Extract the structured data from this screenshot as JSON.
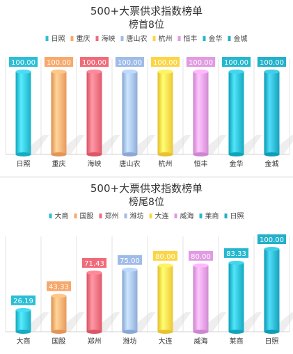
{
  "chart_data": [
    {
      "type": "bar",
      "title": "500+大票供求指数榜单",
      "subtitle": "榜首8位",
      "categories": [
        "日照",
        "重庆",
        "海峡",
        "唐山农",
        "杭州",
        "恒丰",
        "金华",
        "金城"
      ],
      "values": [
        100.0,
        100.0,
        100.0,
        100.0,
        100.0,
        100.0,
        100.0,
        100.0
      ],
      "value_labels": [
        "100.00",
        "100.00",
        "100.00",
        "100.00",
        "100.00",
        "100.00",
        "100.00",
        "100.00"
      ],
      "colors": [
        "#2bbfd6",
        "#f7a86b",
        "#f06b7a",
        "#9fbbe8",
        "#fcd545",
        "#e29ae3",
        "#24b8cf",
        "#23b0cb"
      ],
      "ylim": [
        0,
        100
      ],
      "legend_position": "top",
      "grid": "vertical category separators"
    },
    {
      "type": "bar",
      "title": "500+大票供求指数榜单",
      "subtitle": "榜尾8位",
      "categories": [
        "大商",
        "国股",
        "郑州",
        "潍坊",
        "大连",
        "威海",
        "莱商",
        "日照"
      ],
      "values": [
        26.19,
        43.33,
        71.43,
        75.0,
        80.0,
        80.0,
        83.33,
        100.0
      ],
      "value_labels": [
        "26.19",
        "43.33",
        "71.43",
        "75.00",
        "80.00",
        "80.00",
        "83.33",
        "100.00"
      ],
      "colors": [
        "#2bbfd6",
        "#f7a86b",
        "#f06b7a",
        "#9fbbe8",
        "#fcd545",
        "#e29ae3",
        "#24b8cf",
        "#23b0cb"
      ],
      "ylim": [
        0,
        100
      ],
      "legend_position": "top",
      "grid": "vertical category separators"
    }
  ]
}
